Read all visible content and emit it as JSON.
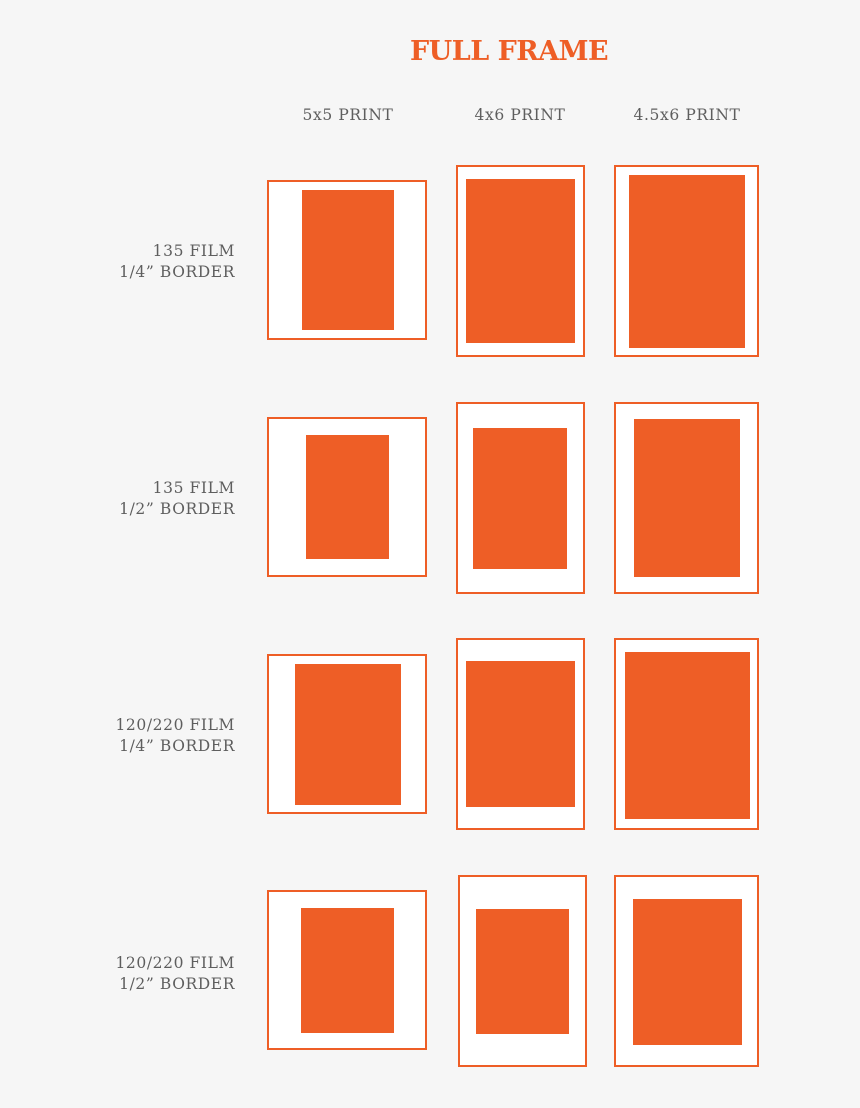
{
  "title": "FULL FRAME",
  "columns": [
    "5x5 PRINT",
    "4x6 PRINT",
    "4.5x6 PRINT"
  ],
  "rows": [
    {
      "line1": "135 FILM",
      "line2": "1/4” BORDER"
    },
    {
      "line1": "135 FILM",
      "line2": "1/2” BORDER"
    },
    {
      "line1": "120/220 FILM",
      "line2": "1/4” BORDER"
    },
    {
      "line1": "120/220 FILM",
      "line2": "1/2” BORDER"
    }
  ],
  "colors": {
    "accent": "#ee5e26",
    "paper": "#ffffff",
    "background": "#f6f6f6",
    "label_text": "#5e5e5e"
  }
}
